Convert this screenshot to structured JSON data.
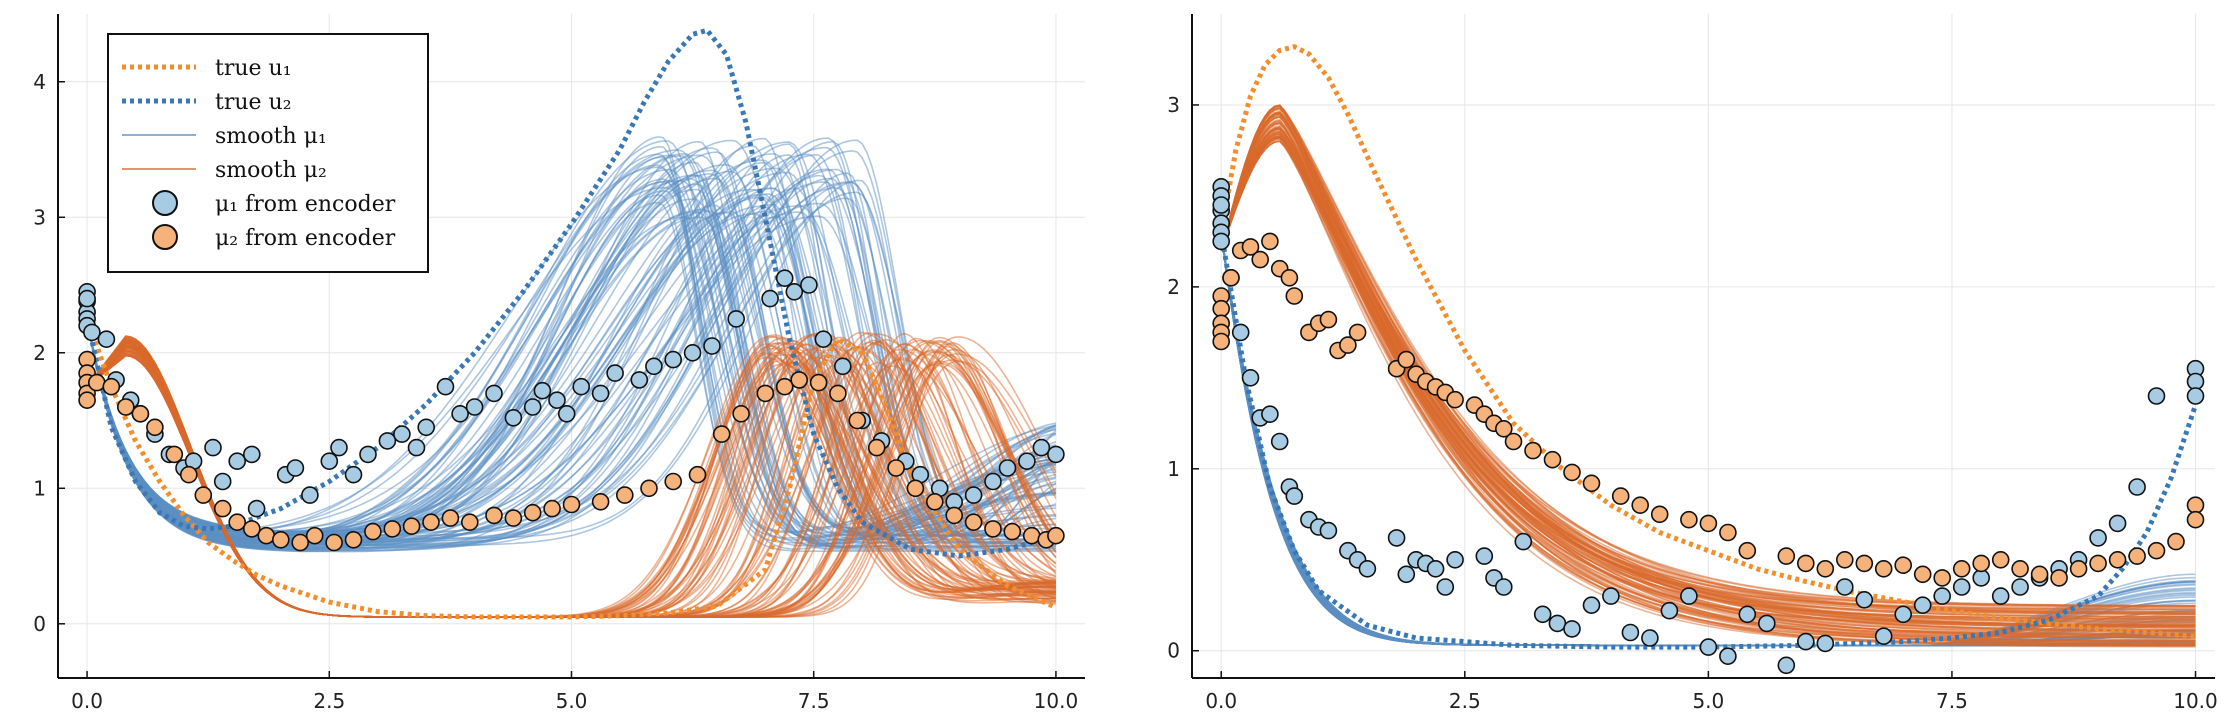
{
  "chart_data": [
    {
      "type": "line",
      "panel": "left",
      "title": "",
      "xlabel": "",
      "ylabel": "",
      "xlim": [
        -0.3,
        10.3
      ],
      "ylim": [
        -0.4,
        4.5
      ],
      "xticks": [
        0.0,
        2.5,
        5.0,
        7.5,
        10.0
      ],
      "xtick_labels": [
        "0.0",
        "2.5",
        "5.0",
        "7.5",
        "10.0"
      ],
      "yticks": [
        0,
        1,
        2,
        3,
        4
      ],
      "ytick_labels": [
        "0",
        "1",
        "2",
        "3",
        "4"
      ],
      "grid": true,
      "legend_position": "top-left",
      "legend": [
        {
          "label": "true u₁",
          "style": "dotted",
          "color": "#f28e2b"
        },
        {
          "label": "true u₂",
          "style": "dotted",
          "color": "#3a78b5"
        },
        {
          "label": "smooth μ₁",
          "style": "line",
          "color": "#5b8fc4"
        },
        {
          "label": "smooth μ₂",
          "style": "line",
          "color": "#d96a2c"
        },
        {
          "label": "μ₁ from encoder",
          "style": "marker",
          "color": "#a6cbe3"
        },
        {
          "label": "μ₂ from encoder",
          "style": "marker",
          "color": "#f5b27a"
        }
      ],
      "series": [
        {
          "name": "true u₁",
          "style": "dotted",
          "color": "#f28e2b",
          "x": [
            0,
            0.25,
            0.5,
            0.75,
            1.0,
            1.25,
            1.5,
            1.75,
            2.0,
            2.5,
            3.0,
            3.5,
            4.0,
            4.5,
            5.0,
            5.5,
            6.0,
            6.5,
            7.0,
            7.25,
            7.5,
            7.75,
            8.0,
            8.25,
            8.5,
            9.0,
            9.5,
            10.0
          ],
          "y": [
            2.25,
            1.75,
            1.35,
            1.05,
            0.8,
            0.6,
            0.47,
            0.36,
            0.28,
            0.16,
            0.09,
            0.06,
            0.05,
            0.05,
            0.05,
            0.06,
            0.08,
            0.13,
            0.4,
            1.0,
            1.8,
            2.1,
            2.0,
            1.6,
            1.1,
            0.55,
            0.28,
            0.12
          ]
        },
        {
          "name": "true u₂",
          "style": "dotted",
          "color": "#3a78b5",
          "x": [
            0,
            0.25,
            0.5,
            0.75,
            1.0,
            1.25,
            1.5,
            2.0,
            2.5,
            3.0,
            3.5,
            4.0,
            4.5,
            5.0,
            5.5,
            5.75,
            6.0,
            6.25,
            6.4,
            6.6,
            6.8,
            7.0,
            7.25,
            7.5,
            7.75,
            8.0,
            8.5,
            9.0,
            9.5,
            10.0
          ],
          "y": [
            2.25,
            1.45,
            1.05,
            0.82,
            0.72,
            0.7,
            0.72,
            0.85,
            1.05,
            1.3,
            1.62,
            2.0,
            2.45,
            2.95,
            3.5,
            3.85,
            4.15,
            4.35,
            4.38,
            4.2,
            3.7,
            3.0,
            2.1,
            1.4,
            1.0,
            0.75,
            0.55,
            0.5,
            0.55,
            0.65
          ]
        }
      ],
      "smooth_mu1": {
        "label": "smooth μ₁",
        "color": "#5b8fc4",
        "curve_count": 90,
        "start": 2.25,
        "trough_x": 1.6,
        "trough_y": 0.6,
        "peak_x_range": [
          5.9,
          8.0
        ],
        "peak_y_range": [
          3.0,
          3.6
        ],
        "end_y_range": [
          0.4,
          1.5
        ]
      },
      "smooth_mu2": {
        "label": "smooth μ₂",
        "color": "#d96a2c",
        "curve_count": 90,
        "start": 1.75,
        "early_peak_x": 0.4,
        "early_peak_y": 2.05,
        "trough_y": 0.05,
        "peak_x_range": [
          7.0,
          9.0
        ],
        "peak_y_range": [
          1.9,
          2.15
        ],
        "end_y_range": [
          0.2,
          0.5
        ]
      },
      "mu1_encoder": {
        "label": "μ₁ from encoder",
        "color": "#a6cbe3",
        "x": [
          0,
          0,
          0,
          0,
          0,
          0,
          0.05,
          0.2,
          0.3,
          0.45,
          0.55,
          0.7,
          0.85,
          1.0,
          1.1,
          1.3,
          1.4,
          1.55,
          1.7,
          1.75,
          2.05,
          2.15,
          2.3,
          2.5,
          2.6,
          2.75,
          2.9,
          3.1,
          3.25,
          3.4,
          3.5,
          3.7,
          3.85,
          4.0,
          4.2,
          4.4,
          4.6,
          4.7,
          4.85,
          4.95,
          5.1,
          5.3,
          5.45,
          5.7,
          5.85,
          6.05,
          6.25,
          6.45,
          6.7,
          7.05,
          7.2,
          7.3,
          7.45,
          7.6,
          7.8,
          8.0,
          8.2,
          8.45,
          8.6,
          8.8,
          8.95,
          9.15,
          9.35,
          9.5,
          9.7,
          9.85,
          10.0
        ],
        "y": [
          2.45,
          2.38,
          2.3,
          2.25,
          2.2,
          2.4,
          2.15,
          2.1,
          1.8,
          1.65,
          1.55,
          1.4,
          1.25,
          1.15,
          1.2,
          1.3,
          1.05,
          1.2,
          1.25,
          0.85,
          1.1,
          1.15,
          0.95,
          1.2,
          1.3,
          1.1,
          1.25,
          1.35,
          1.4,
          1.3,
          1.45,
          1.75,
          1.55,
          1.6,
          1.7,
          1.52,
          1.6,
          1.72,
          1.65,
          1.55,
          1.75,
          1.7,
          1.85,
          1.8,
          1.9,
          1.95,
          2.0,
          2.05,
          2.25,
          2.4,
          2.55,
          2.45,
          2.5,
          2.1,
          1.9,
          1.5,
          1.35,
          1.2,
          1.1,
          1.0,
          0.9,
          0.95,
          1.05,
          1.15,
          1.2,
          1.3,
          1.25
        ]
      },
      "mu2_encoder": {
        "label": "μ₂ from encoder",
        "color": "#f5b27a",
        "x": [
          0,
          0,
          0,
          0,
          0,
          0.1,
          0.25,
          0.4,
          0.55,
          0.7,
          0.9,
          1.05,
          1.2,
          1.4,
          1.55,
          1.7,
          1.85,
          2.0,
          2.2,
          2.35,
          2.55,
          2.75,
          2.95,
          3.15,
          3.35,
          3.55,
          3.75,
          3.95,
          4.2,
          4.4,
          4.6,
          4.8,
          5.0,
          5.3,
          5.55,
          5.8,
          6.05,
          6.3,
          6.55,
          6.75,
          7.0,
          7.2,
          7.35,
          7.55,
          7.75,
          7.95,
          8.15,
          8.35,
          8.55,
          8.75,
          8.95,
          9.15,
          9.35,
          9.55,
          9.75,
          9.9,
          10.0
        ],
        "y": [
          1.95,
          1.85,
          1.78,
          1.7,
          1.65,
          1.78,
          1.75,
          1.6,
          1.55,
          1.45,
          1.25,
          1.1,
          0.95,
          0.85,
          0.75,
          0.7,
          0.65,
          0.62,
          0.6,
          0.65,
          0.6,
          0.62,
          0.68,
          0.7,
          0.72,
          0.75,
          0.78,
          0.75,
          0.8,
          0.78,
          0.82,
          0.85,
          0.88,
          0.9,
          0.95,
          1.0,
          1.05,
          1.1,
          1.4,
          1.55,
          1.7,
          1.75,
          1.8,
          1.78,
          1.7,
          1.5,
          1.3,
          1.15,
          1.0,
          0.9,
          0.8,
          0.75,
          0.7,
          0.68,
          0.65,
          0.62,
          0.65
        ]
      }
    },
    {
      "type": "line",
      "panel": "right",
      "title": "",
      "xlabel": "",
      "ylabel": "",
      "xlim": [
        -0.3,
        10.2
      ],
      "ylim": [
        -0.15,
        3.5
      ],
      "xticks": [
        0.0,
        2.5,
        5.0,
        7.5,
        10.0
      ],
      "xtick_labels": [
        "0.0",
        "2.5",
        "5.0",
        "7.5",
        "10.0"
      ],
      "yticks": [
        0,
        1,
        2,
        3
      ],
      "ytick_labels": [
        "0",
        "1",
        "2",
        "3"
      ],
      "grid": true,
      "series": [
        {
          "name": "true u₁",
          "style": "dotted",
          "color": "#f28e2b",
          "x": [
            0,
            0.15,
            0.3,
            0.45,
            0.6,
            0.75,
            0.9,
            1.1,
            1.3,
            1.6,
            2.0,
            2.5,
            3.0,
            3.5,
            4.0,
            4.5,
            5.0,
            5.5,
            6.0,
            6.5,
            7.0,
            7.5,
            8.0,
            8.5,
            9.0,
            9.5,
            10.0
          ],
          "y": [
            2.3,
            2.75,
            3.05,
            3.22,
            3.3,
            3.32,
            3.28,
            3.15,
            2.95,
            2.6,
            2.15,
            1.65,
            1.25,
            1.0,
            0.8,
            0.65,
            0.55,
            0.45,
            0.38,
            0.32,
            0.27,
            0.22,
            0.18,
            0.15,
            0.12,
            0.1,
            0.08
          ]
        },
        {
          "name": "true u₂",
          "style": "dotted",
          "color": "#3a78b5",
          "x": [
            0,
            0.25,
            0.5,
            0.75,
            1.0,
            1.5,
            2.0,
            3.0,
            4.0,
            5.0,
            6.0,
            7.0,
            7.5,
            8.0,
            8.5,
            9.0,
            9.25,
            9.5,
            9.75,
            10.0
          ],
          "y": [
            2.3,
            1.5,
            0.9,
            0.55,
            0.33,
            0.14,
            0.07,
            0.03,
            0.02,
            0.02,
            0.03,
            0.05,
            0.07,
            0.1,
            0.17,
            0.3,
            0.45,
            0.65,
            0.95,
            1.35
          ]
        }
      ],
      "smooth_mu1": {
        "label": "smooth μ₁",
        "color": "#5b8fc4",
        "curve_count": 80,
        "start": 2.3,
        "decay_rate": 3.2,
        "end_y_range": [
          0.03,
          0.45
        ]
      },
      "smooth_mu2": {
        "label": "smooth μ₂",
        "color": "#d96a2c",
        "curve_count": 80,
        "start": 2.2,
        "peak_x": 0.6,
        "peak_y_range": [
          2.8,
          3.0
        ],
        "end_y_range": [
          0.02,
          0.25
        ]
      },
      "mu1_encoder": {
        "label": "μ₁ from encoder",
        "color": "#a6cbe3",
        "x": [
          0,
          0,
          0,
          0,
          0,
          0,
          0,
          0.1,
          0.2,
          0.3,
          0.4,
          0.5,
          0.6,
          0.7,
          0.75,
          0.9,
          1.0,
          1.1,
          1.3,
          1.4,
          1.5,
          1.8,
          1.9,
          2.0,
          2.1,
          2.2,
          2.3,
          2.4,
          2.7,
          2.8,
          2.9,
          3.1,
          3.3,
          3.45,
          3.6,
          3.8,
          4.0,
          4.2,
          4.4,
          4.6,
          4.8,
          5.0,
          5.2,
          5.4,
          5.6,
          5.8,
          6.0,
          6.2,
          6.4,
          6.6,
          6.8,
          7.0,
          7.2,
          7.4,
          7.6,
          7.8,
          8.0,
          8.2,
          8.4,
          8.6,
          8.8,
          9.0,
          9.2,
          9.4,
          9.6,
          10.0,
          10.0,
          10.0
        ],
        "y": [
          2.55,
          2.5,
          2.42,
          2.35,
          2.3,
          2.25,
          2.45,
          2.05,
          1.75,
          1.5,
          1.28,
          1.3,
          1.15,
          0.9,
          0.85,
          0.72,
          0.68,
          0.66,
          0.55,
          0.5,
          0.45,
          0.62,
          0.42,
          0.5,
          0.48,
          0.45,
          0.35,
          0.5,
          0.52,
          0.4,
          0.35,
          0.6,
          0.2,
          0.15,
          0.12,
          0.25,
          0.3,
          0.1,
          0.07,
          0.22,
          0.3,
          0.02,
          -0.03,
          0.2,
          0.15,
          -0.08,
          0.05,
          0.04,
          0.35,
          0.28,
          0.08,
          0.2,
          0.25,
          0.3,
          0.35,
          0.4,
          0.3,
          0.35,
          0.4,
          0.45,
          0.5,
          0.62,
          0.7,
          0.9,
          1.4,
          1.55,
          1.48,
          1.4
        ]
      },
      "mu2_encoder": {
        "label": "μ₂ from encoder",
        "color": "#f5b27a",
        "x": [
          0,
          0,
          0,
          0,
          0,
          0.1,
          0.2,
          0.3,
          0.4,
          0.5,
          0.6,
          0.7,
          0.75,
          0.9,
          1.0,
          1.1,
          1.2,
          1.3,
          1.4,
          1.8,
          1.9,
          2.0,
          2.1,
          2.2,
          2.3,
          2.4,
          2.6,
          2.7,
          2.8,
          2.9,
          3.0,
          3.2,
          3.4,
          3.6,
          3.8,
          4.1,
          4.3,
          4.5,
          4.8,
          5.0,
          5.2,
          5.4,
          5.8,
          6.0,
          6.2,
          6.4,
          6.6,
          6.8,
          7.0,
          7.2,
          7.4,
          7.6,
          7.8,
          8.0,
          8.2,
          8.4,
          8.6,
          8.8,
          9.0,
          9.2,
          9.4,
          9.6,
          9.8,
          10.0,
          10.0
        ],
        "y": [
          1.95,
          1.88,
          1.8,
          1.75,
          1.7,
          2.05,
          2.2,
          2.22,
          2.15,
          2.25,
          2.1,
          2.05,
          1.95,
          1.75,
          1.8,
          1.82,
          1.65,
          1.68,
          1.75,
          1.55,
          1.6,
          1.52,
          1.48,
          1.45,
          1.42,
          1.38,
          1.35,
          1.3,
          1.25,
          1.22,
          1.15,
          1.1,
          1.05,
          0.98,
          0.92,
          0.85,
          0.8,
          0.75,
          0.72,
          0.7,
          0.65,
          0.55,
          0.52,
          0.48,
          0.45,
          0.5,
          0.48,
          0.45,
          0.47,
          0.42,
          0.4,
          0.45,
          0.48,
          0.5,
          0.45,
          0.42,
          0.4,
          0.45,
          0.48,
          0.5,
          0.52,
          0.55,
          0.6,
          0.8,
          0.72
        ]
      }
    }
  ]
}
